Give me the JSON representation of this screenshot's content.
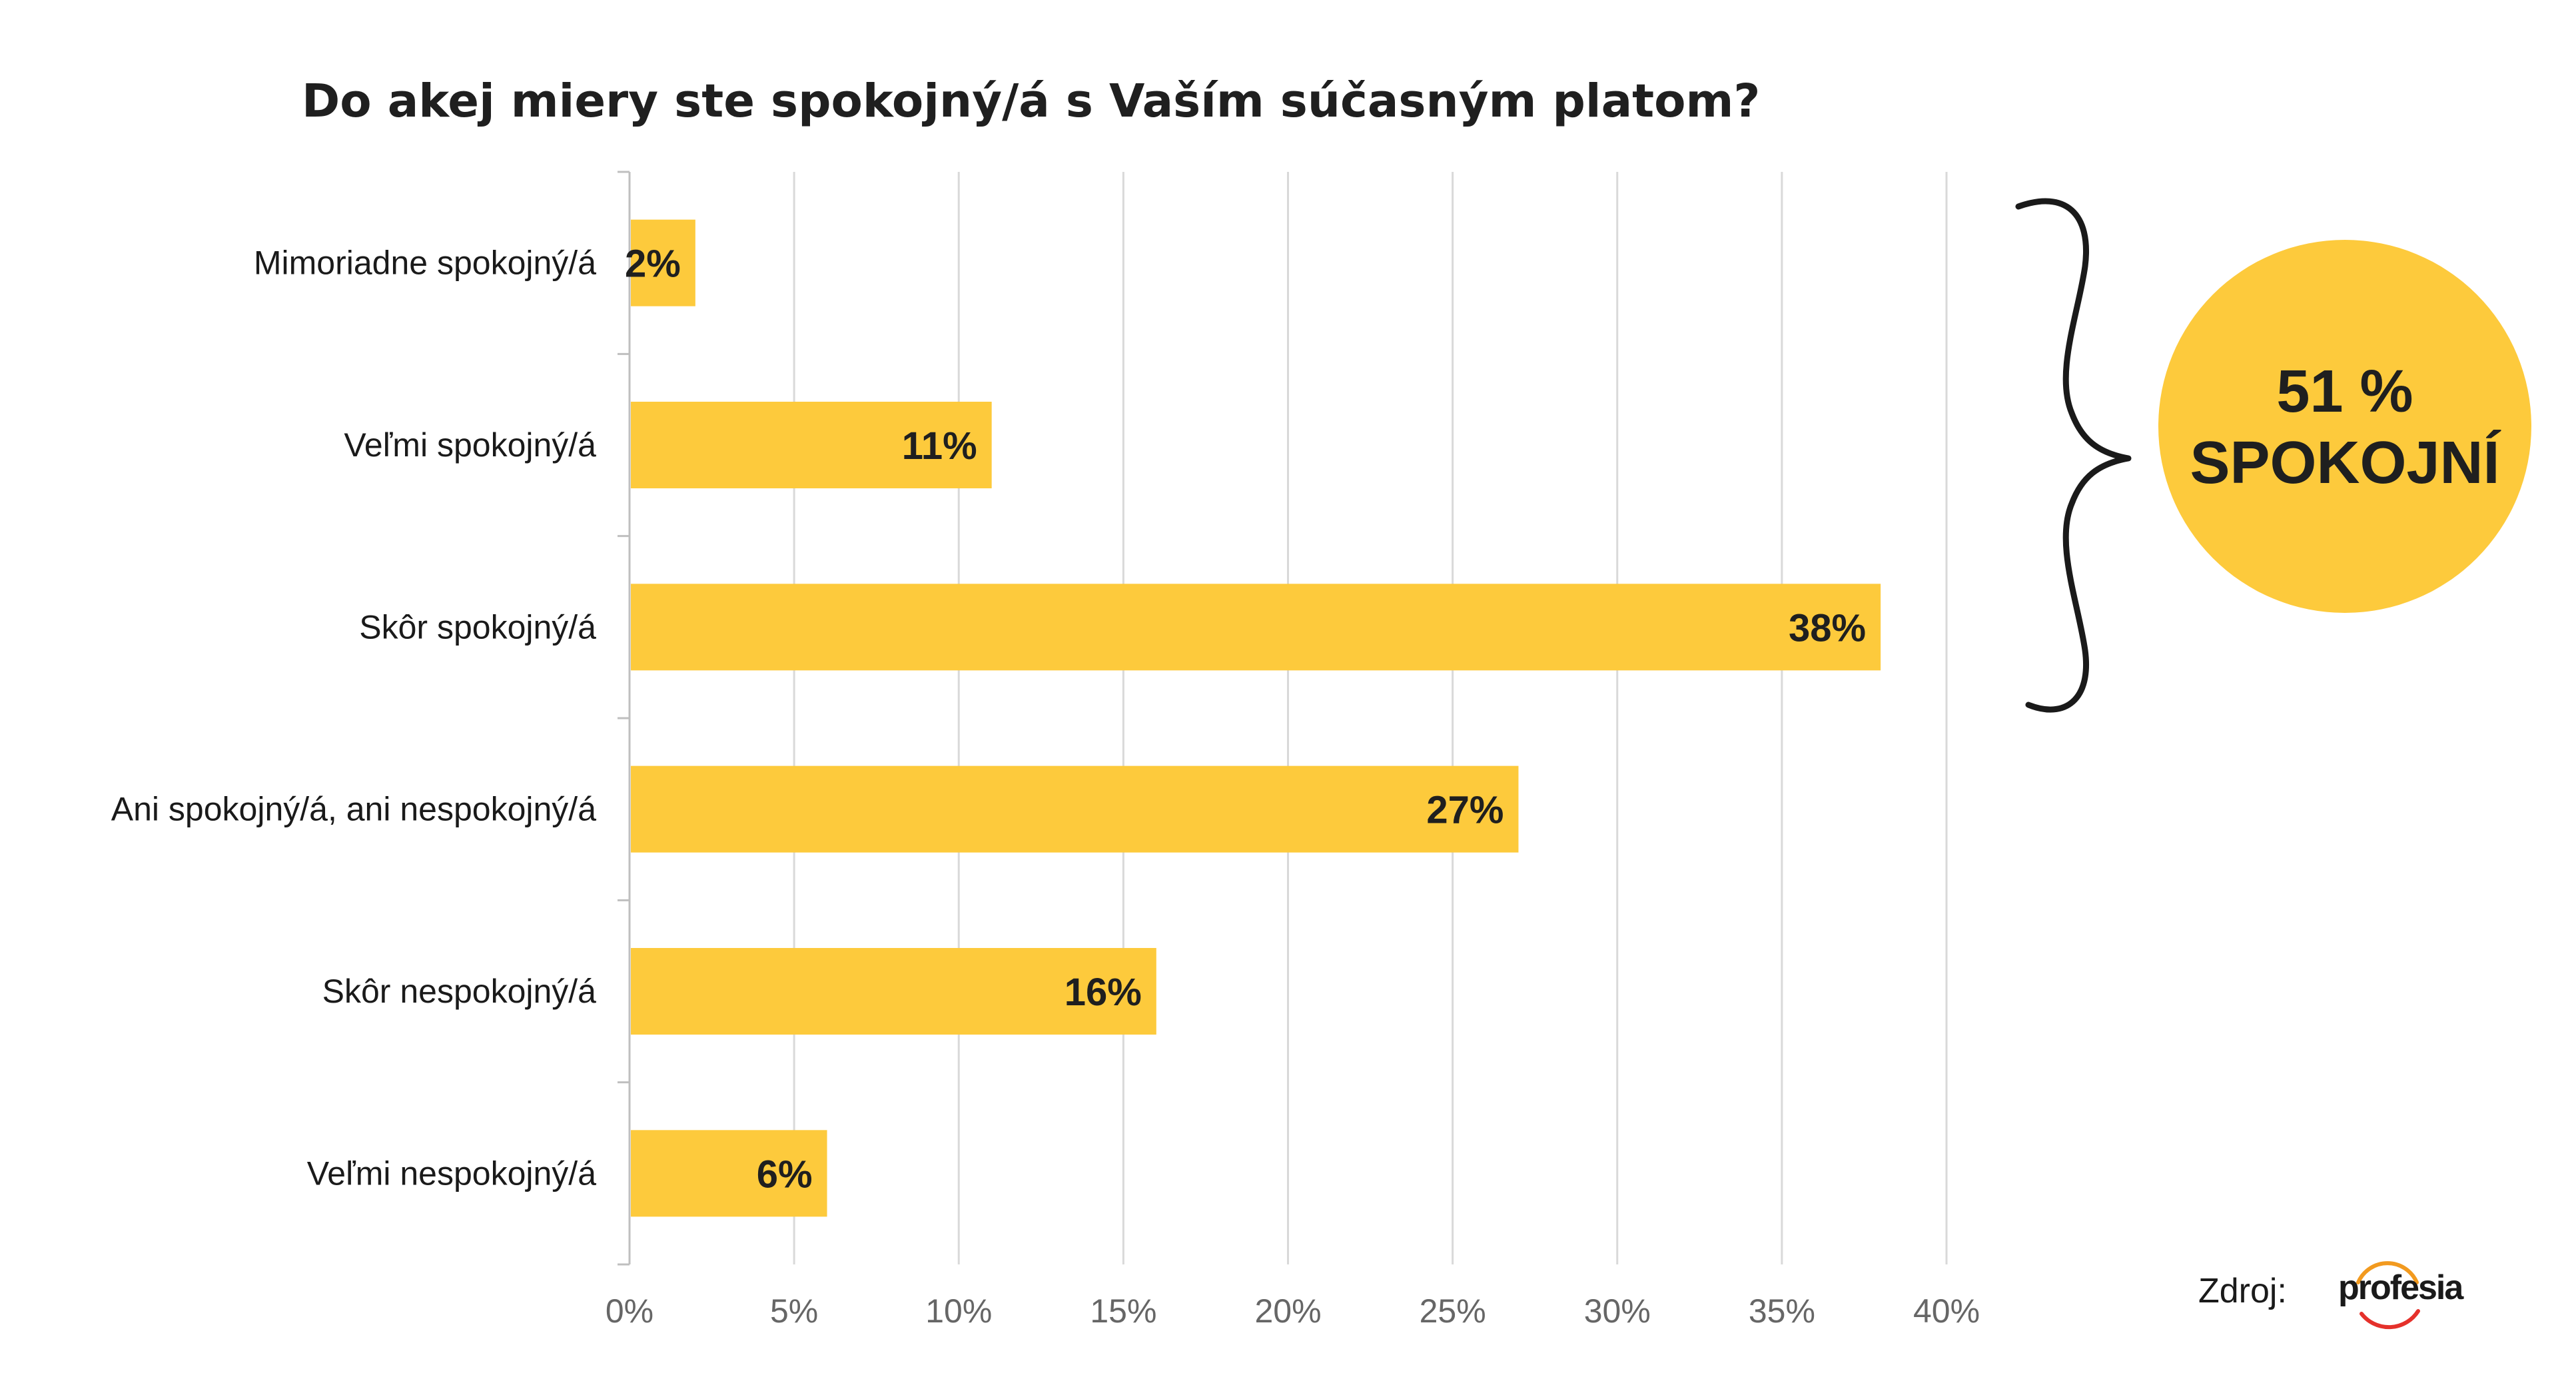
{
  "colors": {
    "bar": "#FDCA3C",
    "grid": "#D9D9D9",
    "axis": "#BFBFBF",
    "text": "#1F1F1F",
    "tick_text": "#666666",
    "callout": "#FDCA3C",
    "brace": "#1A1A1A",
    "logo_arc_orange": "#F29A1F",
    "logo_arc_red": "#E5312B"
  },
  "chart_data": {
    "type": "bar",
    "orientation": "horizontal",
    "title": "Do akej miery ste spokojný/á s Vaším súčasným platom?",
    "categories": [
      "Mimoriadne spokojný/á",
      "Veľmi spokojný/á",
      "Skôr spokojný/á",
      "Ani spokojný/á, ani nespokojný/á",
      "Skôr nespokojný/á",
      "Veľmi nespokojný/á"
    ],
    "values": [
      2,
      11,
      38,
      27,
      16,
      6
    ],
    "data_labels": [
      "2%",
      "11%",
      "38%",
      "27%",
      "16%",
      "6%"
    ],
    "xlim": [
      0,
      40
    ],
    "xticks": [
      0,
      5,
      10,
      15,
      20,
      25,
      30,
      35,
      40
    ],
    "xtick_labels": [
      "0%",
      "5%",
      "10%",
      "15%",
      "20%",
      "25%",
      "30%",
      "35%",
      "40%"
    ],
    "xlabel": "",
    "ylabel": "",
    "grid": "vertical",
    "legend": "none"
  },
  "callout": {
    "line1": "51 %",
    "line2": "SPOKOJNÍ",
    "covers_categories": [
      "Mimoriadne spokojný/á",
      "Veľmi spokojný/á",
      "Skôr spokojný/á"
    ]
  },
  "source": {
    "label": "Zdroj:",
    "logo_text": "profesia"
  },
  "icons": {
    "brace": "right-curly-brace-icon",
    "logo": "profesia-logo-icon"
  }
}
